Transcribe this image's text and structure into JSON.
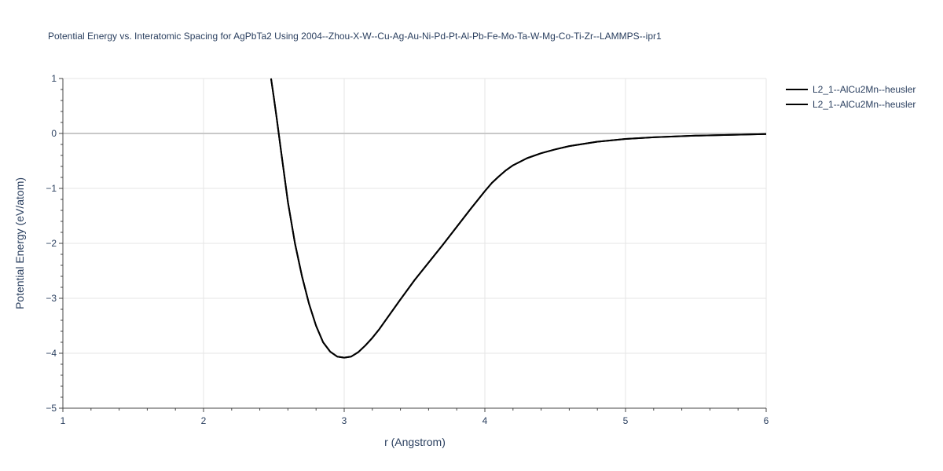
{
  "chart_data": {
    "type": "line",
    "title": "Potential Energy vs. Interatomic Spacing for AgPbTa2 Using 2004--Zhou-X-W--Cu-Ag-Au-Ni-Pd-Pt-Al-Pb-Fe-Mo-Ta-W-Mg-Co-Ti-Zr--LAMMPS--ipr1",
    "xlabel": "r (Angstrom)",
    "ylabel": "Potential Energy (eV/atom)",
    "xlim": [
      1,
      6
    ],
    "ylim": [
      -5,
      1
    ],
    "xticks": [
      1,
      2,
      3,
      4,
      5,
      6
    ],
    "xtick_labels": [
      "1",
      "2",
      "3",
      "4",
      "5",
      "6"
    ],
    "yticks": [
      1,
      0,
      -1,
      -2,
      -3,
      -4,
      -5
    ],
    "ytick_labels": [
      "1",
      "0",
      "−1",
      "−2",
      "−3",
      "−4",
      "−5"
    ],
    "grid": true,
    "legend_position": "top-right",
    "series": [
      {
        "name": "L2_1--AlCu2Mn--heusler",
        "color": "#000000",
        "x": [
          2.48,
          2.5,
          2.52,
          2.55,
          2.6,
          2.65,
          2.7,
          2.75,
          2.8,
          2.85,
          2.9,
          2.95,
          3.0,
          3.05,
          3.1,
          3.15,
          3.2,
          3.25,
          3.3,
          3.4,
          3.5,
          3.6,
          3.7,
          3.8,
          3.9,
          4.0,
          4.05,
          4.1,
          4.15,
          4.2,
          4.3,
          4.4,
          4.5,
          4.6,
          4.8,
          5.0,
          5.2,
          5.5,
          6.0
        ],
        "y": [
          1.0,
          0.65,
          0.28,
          -0.3,
          -1.25,
          -2.0,
          -2.6,
          -3.1,
          -3.5,
          -3.8,
          -3.97,
          -4.06,
          -4.08,
          -4.06,
          -3.98,
          -3.86,
          -3.72,
          -3.56,
          -3.38,
          -3.02,
          -2.67,
          -2.35,
          -2.03,
          -1.7,
          -1.37,
          -1.05,
          -0.9,
          -0.78,
          -0.67,
          -0.58,
          -0.45,
          -0.36,
          -0.29,
          -0.23,
          -0.15,
          -0.1,
          -0.07,
          -0.04,
          -0.01
        ]
      },
      {
        "name": "L2_1--AlCu2Mn--heusler",
        "color": "#000000",
        "x": [
          2.48,
          2.5,
          2.52,
          2.55,
          2.6,
          2.65,
          2.7,
          2.75,
          2.8,
          2.85,
          2.9,
          2.95,
          3.0,
          3.05,
          3.1,
          3.15,
          3.2,
          3.25,
          3.3,
          3.4,
          3.5,
          3.6,
          3.7,
          3.8,
          3.9,
          4.0,
          4.05,
          4.1,
          4.15,
          4.2,
          4.3,
          4.4,
          4.5,
          4.6,
          4.8,
          5.0,
          5.2,
          5.5,
          6.0
        ],
        "y": [
          1.0,
          0.65,
          0.28,
          -0.3,
          -1.25,
          -2.0,
          -2.6,
          -3.1,
          -3.5,
          -3.8,
          -3.97,
          -4.06,
          -4.08,
          -4.06,
          -3.98,
          -3.86,
          -3.72,
          -3.56,
          -3.38,
          -3.02,
          -2.67,
          -2.35,
          -2.03,
          -1.7,
          -1.37,
          -1.05,
          -0.9,
          -0.78,
          -0.67,
          -0.58,
          -0.45,
          -0.36,
          -0.29,
          -0.23,
          -0.15,
          -0.1,
          -0.07,
          -0.04,
          -0.01
        ]
      }
    ]
  }
}
